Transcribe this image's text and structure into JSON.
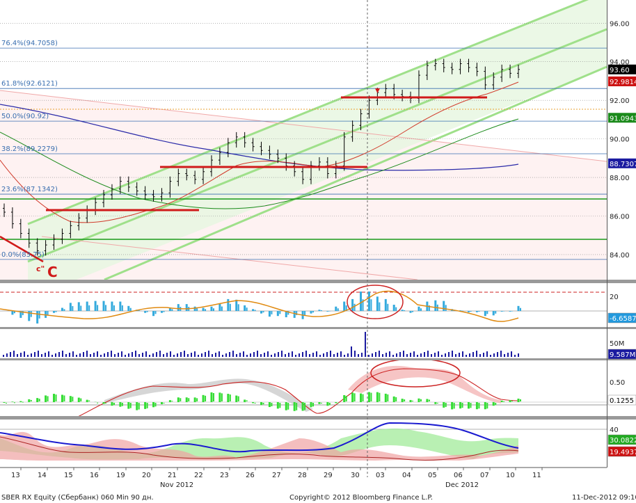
{
  "chart_data": [
    {
      "type": "candlestick",
      "name": "price",
      "y_axis_ticks": [
        "84.00",
        "86.00",
        "88.00",
        "90.00",
        "92.00",
        "94.00",
        "96.00"
      ],
      "ylim": [
        82.7,
        97.2
      ],
      "fib_levels": [
        {
          "label": "76.4%(94.7058)",
          "value": 94.7058
        },
        {
          "label": "61.8%(92.6121)",
          "value": 92.6121
        },
        {
          "label": "50.0%(90.92)",
          "value": 90.92
        },
        {
          "label": "38.2%(89.2279)",
          "value": 89.2279
        },
        {
          "label": "23.6%(87.1342)",
          "value": 87.1342
        },
        {
          "label": "0.0%(83.75)",
          "value": 83.75
        }
      ],
      "value_tags": [
        {
          "text": "93.60",
          "value": 93.6,
          "bg": "#000000",
          "fg": "#ffffff"
        },
        {
          "text": "92.9814",
          "value": 92.9814,
          "bg": "#cc1111",
          "fg": "#ffffff"
        },
        {
          "text": "91.0943",
          "value": 91.0943,
          "bg": "#1a8a1a",
          "fg": "#ffffff"
        },
        {
          "text": "88.7307",
          "value": 88.7307,
          "bg": "#1a1aa0",
          "fg": "#ffffff"
        }
      ],
      "annotations": [
        "c\"",
        "C"
      ],
      "closes": [
        86.2,
        85.6,
        85.1,
        84.6,
        84.2,
        84.5,
        84.8,
        85.1,
        85.5,
        85.9,
        86.3,
        86.7,
        87.1,
        87.4,
        87.8,
        87.5,
        87.3,
        87.1,
        87.0,
        87.2,
        87.8,
        88.2,
        88.1,
        87.9,
        88.3,
        88.9,
        89.3,
        89.8,
        90.1,
        89.8,
        89.6,
        89.4,
        89.2,
        89.0,
        88.6,
        88.3,
        87.9,
        88.6,
        88.8,
        88.2,
        88.6,
        90.1,
        90.7,
        91.3,
        92.0,
        92.4,
        92.6,
        92.3,
        92.2,
        92.1,
        93.3,
        93.8,
        93.9,
        93.7,
        93.6,
        93.9,
        93.7,
        93.5,
        92.8,
        93.2,
        93.6,
        93.4,
        93.6
      ]
    },
    {
      "type": "histogram",
      "name": "oscillator",
      "y_axis_ticks": [
        "20"
      ],
      "value_tags": [
        {
          "text": "-6.6587",
          "bg": "#2299dd",
          "fg": "#ffffff"
        }
      ]
    },
    {
      "type": "bar",
      "name": "volume",
      "y_axis_ticks": [
        "50M"
      ],
      "value_tags": [
        {
          "text": "9.587M",
          "bg": "#1a1aa0",
          "fg": "#ffffff"
        }
      ]
    },
    {
      "type": "histogram",
      "name": "indicator",
      "y_axis_ticks": [
        "0.50"
      ],
      "value_tags": [
        {
          "text": "0.1255",
          "bg": "#ffffff",
          "fg": "#000000"
        }
      ]
    },
    {
      "type": "area",
      "name": "directional",
      "y_axis_ticks": [
        "40"
      ],
      "value_tags": [
        {
          "text": "30.0822",
          "bg": "#22aa22",
          "fg": "#ffffff"
        },
        {
          "text": "19.4937",
          "bg": "#cc1111",
          "fg": "#ffffff"
        }
      ]
    }
  ],
  "x_axis": {
    "ticks": [
      "13",
      "14",
      "15",
      "16",
      "19",
      "20",
      "21",
      "22",
      "23",
      "26",
      "27",
      "28",
      "29",
      "30",
      "03",
      "04",
      "05",
      "06",
      "07",
      "10",
      "11"
    ],
    "month_labels": [
      "Nov 2012",
      "Dec 2012"
    ]
  },
  "footer": {
    "left": "SBER RX Equity (Сбербанк) 060 Min 90 дн.",
    "center": "Copyright© 2012 Bloomberg Finance L.P.",
    "right": "11-Dec-2012 09:10:14"
  }
}
